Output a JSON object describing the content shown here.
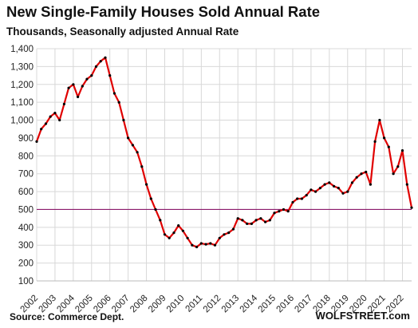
{
  "chart_data": {
    "type": "line",
    "title": "New Single-Family Houses Sold Annual Rate",
    "subtitle": "Thousands, Seasonally adjusted Annual Rate",
    "source": "Source: Commerce Dept.",
    "brand": "WOLFSTREET.com",
    "ylim": [
      100,
      1400
    ],
    "yticks": [
      100,
      200,
      300,
      400,
      500,
      600,
      700,
      800,
      900,
      "1,000",
      "1,100",
      "1,200",
      "1,300",
      "1,400"
    ],
    "xticks": [
      "2002",
      "2003",
      "2004",
      "2005",
      "2006",
      "2007",
      "2008",
      "2009",
      "2010",
      "2011",
      "2012",
      "2013",
      "2014",
      "2015",
      "2016",
      "2017",
      "2018",
      "2019",
      "2020",
      "2021",
      "2022"
    ],
    "xlim": [
      2002,
      2022.5
    ],
    "grid": true,
    "reference_line": {
      "value": 500,
      "color": "#8b1a6b"
    },
    "series": [
      {
        "color": "#e00000",
        "marker_color": "#000000",
        "x": [
          2002.0,
          2002.25,
          2002.5,
          2002.75,
          2003.0,
          2003.25,
          2003.5,
          2003.75,
          2004.0,
          2004.25,
          2004.5,
          2004.75,
          2005.0,
          2005.25,
          2005.5,
          2005.75,
          2006.0,
          2006.25,
          2006.5,
          2006.75,
          2007.0,
          2007.25,
          2007.5,
          2007.75,
          2008.0,
          2008.25,
          2008.5,
          2008.75,
          2009.0,
          2009.25,
          2009.5,
          2009.75,
          2010.0,
          2010.25,
          2010.5,
          2010.75,
          2011.0,
          2011.25,
          2011.5,
          2011.75,
          2012.0,
          2012.25,
          2012.5,
          2012.75,
          2013.0,
          2013.25,
          2013.5,
          2013.75,
          2014.0,
          2014.25,
          2014.5,
          2014.75,
          2015.0,
          2015.25,
          2015.5,
          2015.75,
          2016.0,
          2016.25,
          2016.5,
          2016.75,
          2017.0,
          2017.25,
          2017.5,
          2017.75,
          2018.0,
          2018.25,
          2018.5,
          2018.75,
          2019.0,
          2019.25,
          2019.5,
          2019.75,
          2020.0,
          2020.25,
          2020.5,
          2020.75,
          2021.0,
          2021.25,
          2021.5,
          2021.75,
          2022.0,
          2022.25,
          2022.5
        ],
        "values": [
          880,
          950,
          980,
          1020,
          1040,
          1000,
          1090,
          1180,
          1200,
          1130,
          1190,
          1230,
          1250,
          1300,
          1330,
          1350,
          1250,
          1150,
          1100,
          1000,
          900,
          860,
          820,
          740,
          640,
          560,
          500,
          440,
          360,
          340,
          370,
          410,
          380,
          340,
          300,
          290,
          310,
          305,
          310,
          300,
          340,
          360,
          370,
          390,
          450,
          440,
          420,
          420,
          440,
          450,
          430,
          440,
          480,
          490,
          500,
          490,
          540,
          560,
          560,
          580,
          610,
          600,
          620,
          640,
          650,
          630,
          620,
          590,
          600,
          650,
          680,
          700,
          710,
          640,
          880,
          1000,
          900,
          850,
          700,
          740,
          830,
          640,
          510
        ]
      }
    ]
  }
}
